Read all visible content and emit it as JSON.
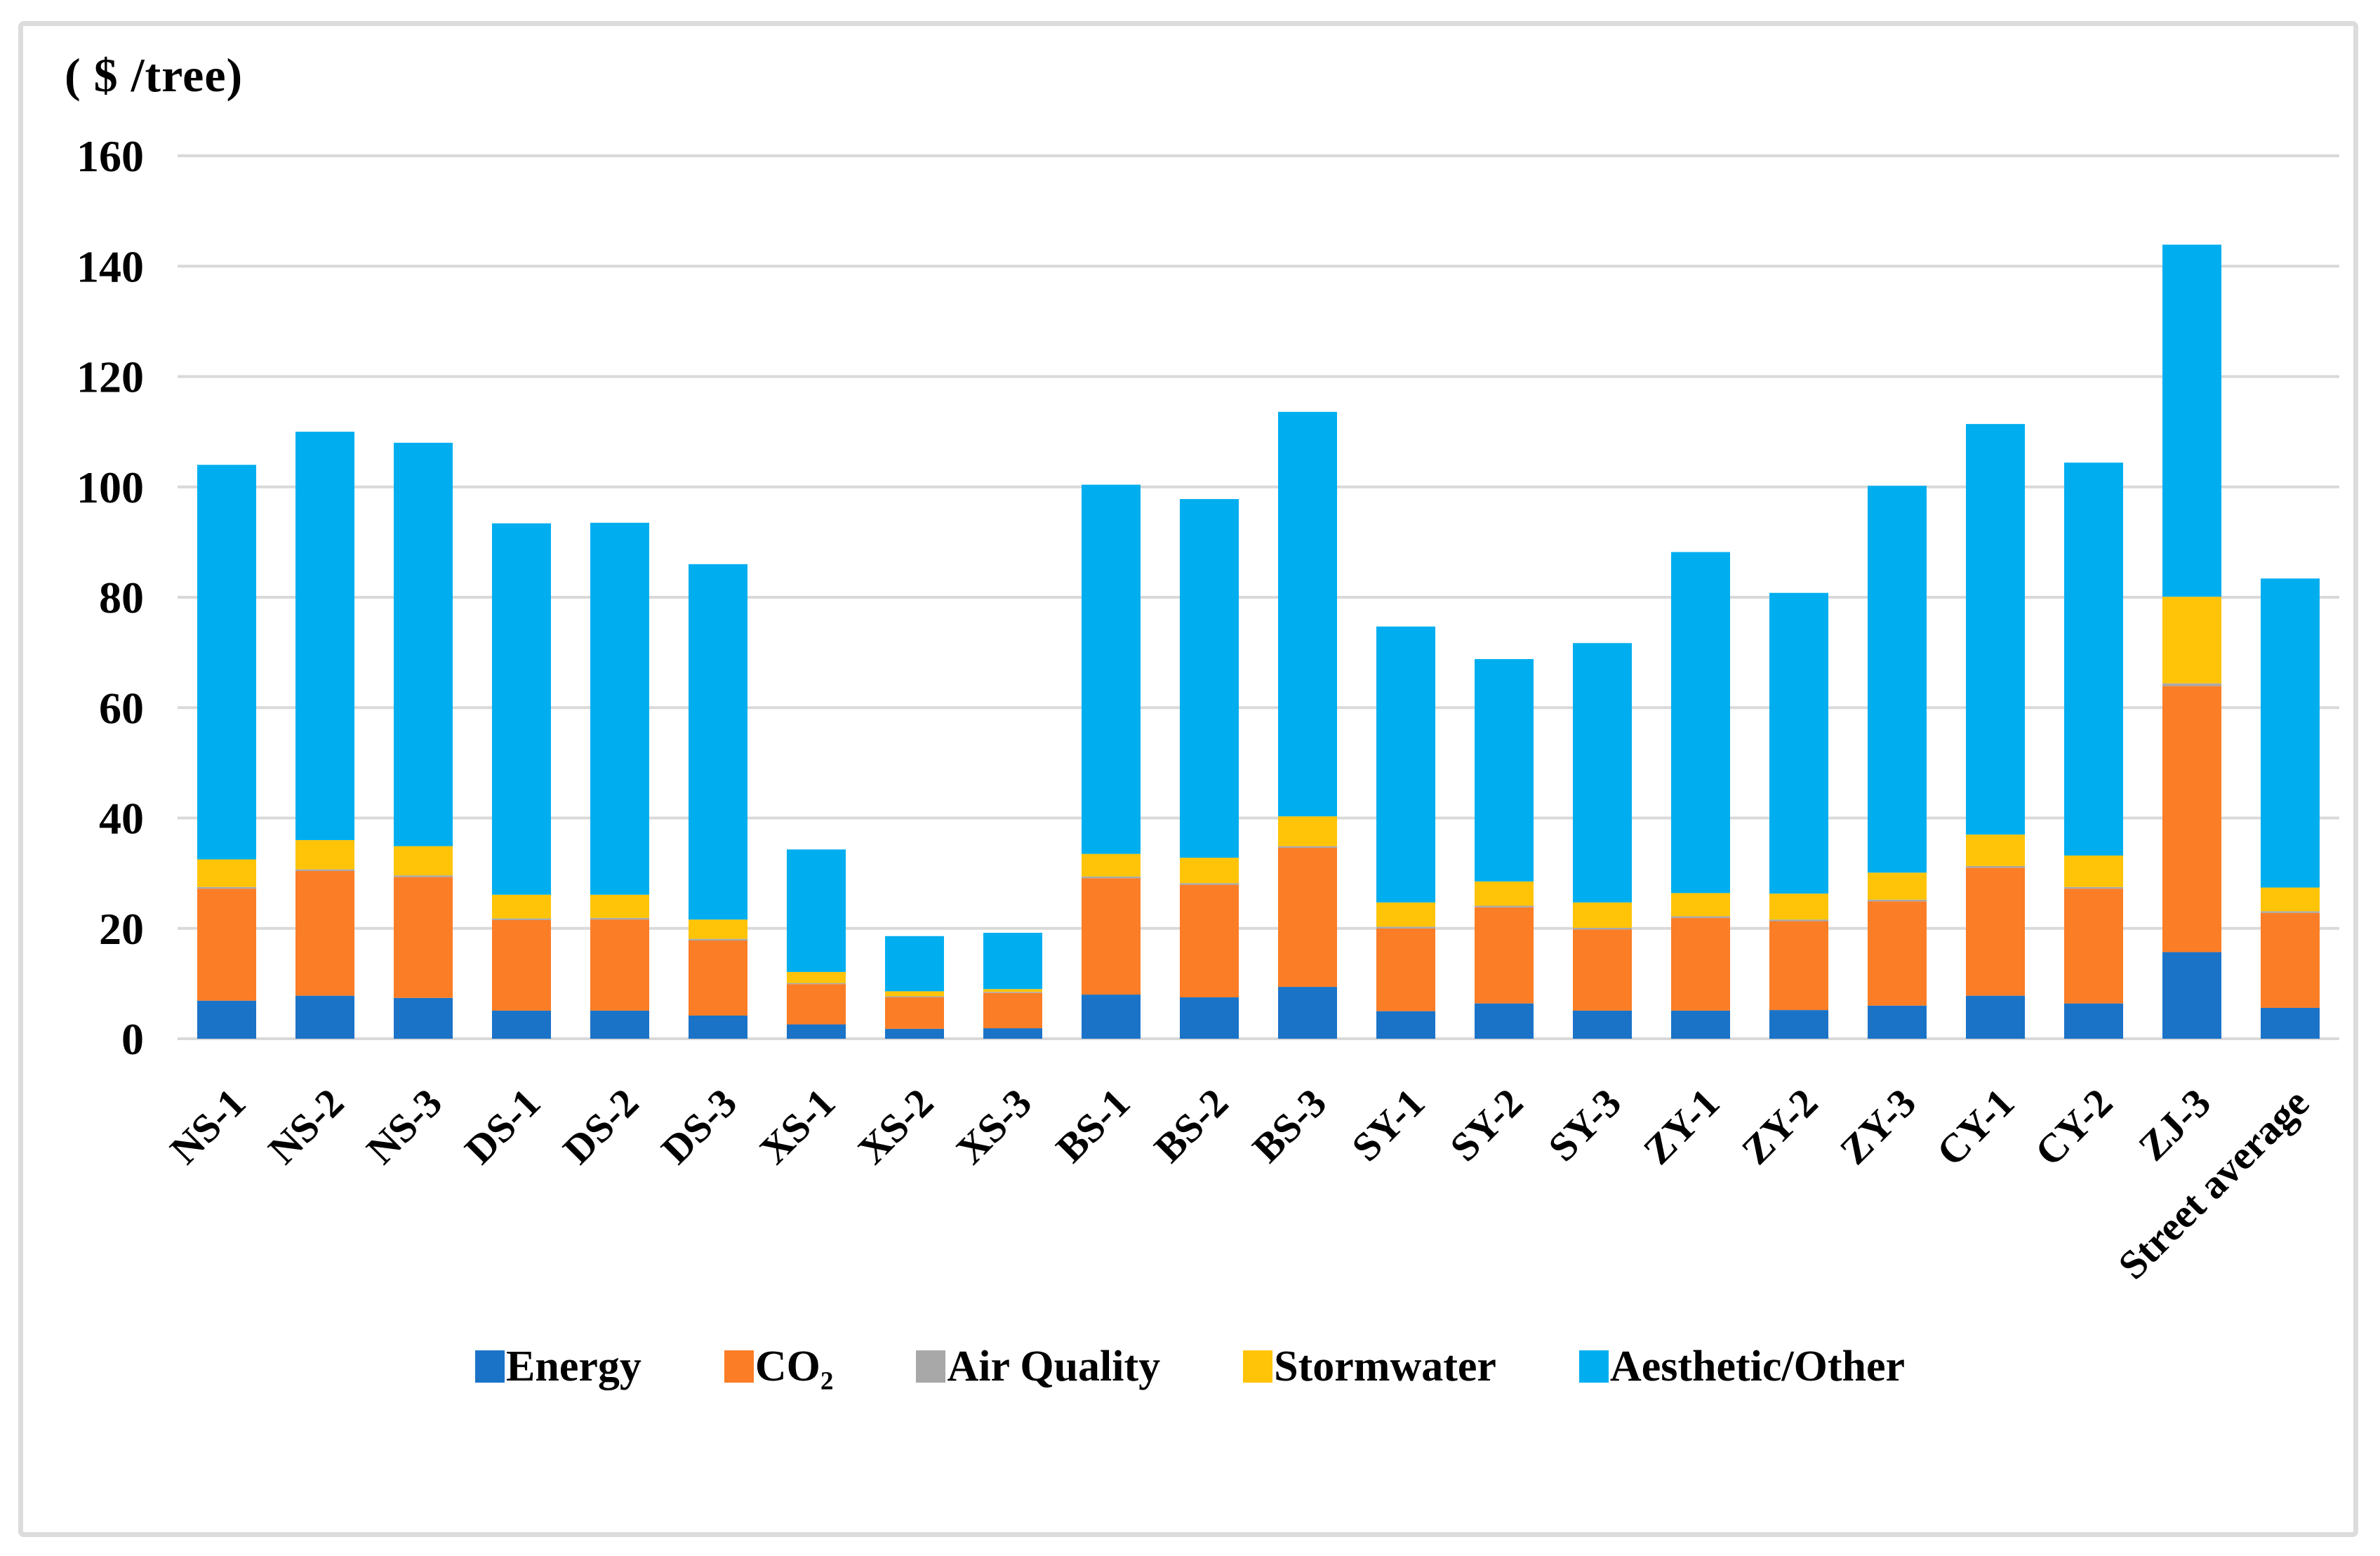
{
  "chart_data": {
    "type": "bar",
    "stacked": true,
    "title": "( $ /tree)",
    "xlabel": "",
    "ylabel": "( $ /tree)",
    "ylim": [
      0,
      160
    ],
    "ytick_step": 20,
    "grid": true,
    "legend_position": "bottom",
    "categories": [
      "NS-1",
      "NS-2",
      "NS-3",
      "DS-1",
      "DS-2",
      "DS-3",
      "XS-1",
      "XS-2",
      "XS-3",
      "BS-1",
      "BS-2",
      "BS-3",
      "SY-1",
      "SY-2",
      "SY-3",
      "ZY-1",
      "ZY-2",
      "ZY-3",
      "CY-1",
      "CY-2",
      "ZJ-3",
      "Street average"
    ],
    "series": [
      {
        "name": "Energy",
        "color": "#1b73c8",
        "values": [
          6.9,
          7.8,
          7.4,
          5.1,
          5.1,
          4.2,
          2.6,
          1.8,
          1.9,
          8.0,
          7.5,
          9.4,
          5.0,
          6.4,
          5.1,
          5.1,
          5.2,
          6.0,
          7.8,
          6.4,
          15.7,
          5.6
        ]
      },
      {
        "name": "CO₂",
        "color": "#fb7d26",
        "values": [
          20.3,
          22.6,
          21.9,
          16.4,
          16.5,
          13.6,
          7.3,
          5.7,
          6.4,
          21.1,
          20.4,
          25.2,
          15.0,
          17.4,
          14.7,
          16.8,
          16.1,
          18.9,
          23.2,
          20.8,
          48.2,
          17.2
        ]
      },
      {
        "name": "Air Quality",
        "color": "#a8a8a8",
        "values": [
          0.3,
          0.3,
          0.3,
          0.3,
          0.3,
          0.3,
          0.2,
          0.2,
          0.2,
          0.3,
          0.3,
          0.3,
          0.3,
          0.3,
          0.3,
          0.3,
          0.3,
          0.3,
          0.3,
          0.3,
          0.5,
          0.3
        ]
      },
      {
        "name": "Stormwater",
        "color": "#ffc408",
        "values": [
          5.0,
          5.3,
          5.3,
          4.3,
          4.2,
          3.5,
          2.0,
          0.9,
          0.5,
          4.1,
          4.6,
          5.4,
          4.4,
          4.4,
          4.6,
          4.2,
          4.7,
          4.9,
          5.7,
          5.7,
          15.7,
          4.3
        ]
      },
      {
        "name": "Aesthetic/Other",
        "color": "#00aeef",
        "values": [
          71.5,
          74.0,
          73.1,
          67.3,
          67.4,
          64.4,
          22.2,
          10.0,
          10.2,
          66.9,
          65.0,
          73.3,
          50.0,
          40.3,
          47.0,
          61.8,
          54.5,
          70.1,
          74.4,
          71.2,
          63.8,
          56.0
        ]
      }
    ],
    "yticks": [
      "0",
      "20",
      "40",
      "60",
      "80",
      "100",
      "120",
      "140",
      "160"
    ]
  },
  "style": {
    "gridline_color": "#d9d9d9",
    "frame_color": "#dcdcdc",
    "text_color": "#000000"
  }
}
